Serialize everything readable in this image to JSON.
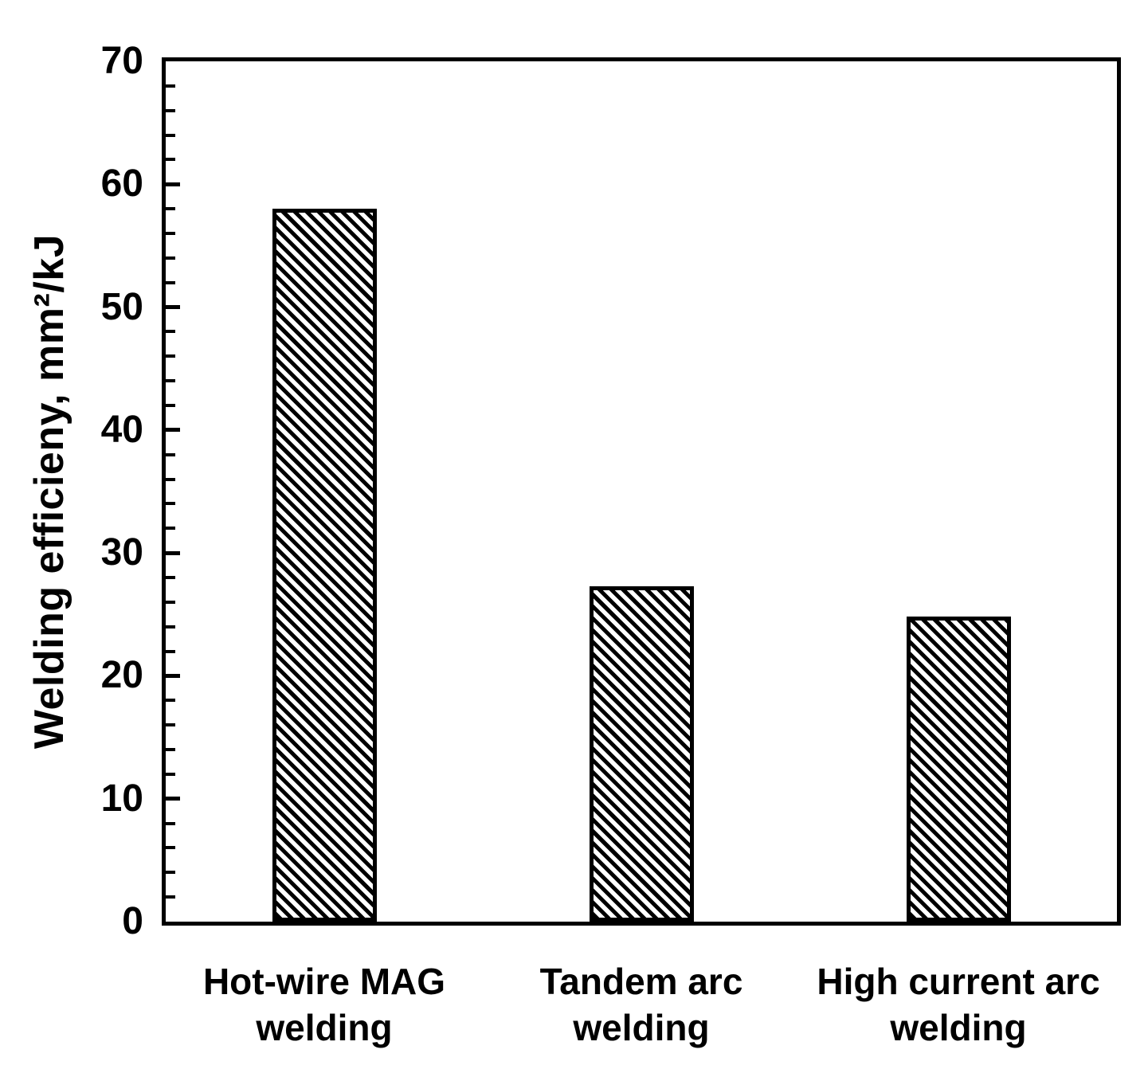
{
  "figure": {
    "background": "#ffffff",
    "ink_color": "#000000"
  },
  "chart_data": {
    "type": "bar",
    "title": "",
    "categories": [
      "Hot-wire MAG welding",
      "Tandem arc welding",
      "High current arc welding"
    ],
    "category_lines": [
      [
        "Hot-wire MAG",
        "welding"
      ],
      [
        "Tandem arc",
        "welding"
      ],
      [
        "High current arc",
        "welding"
      ]
    ],
    "values": [
      58,
      27.3,
      24.8
    ],
    "xlabel": "",
    "ylabel": "Welding efficieny, mm²/kJ",
    "ylim": [
      0,
      70
    ],
    "y_major_tick_step": 10,
    "y_minor_tick_step": 2,
    "y_tick_labels": [
      "0",
      "10",
      "20",
      "30",
      "40",
      "50",
      "60",
      "70"
    ],
    "grid": false,
    "legend": false,
    "bar_fill": "diagonal-hatch-down",
    "bar_color": "#000000",
    "bar_background": "#ffffff"
  }
}
